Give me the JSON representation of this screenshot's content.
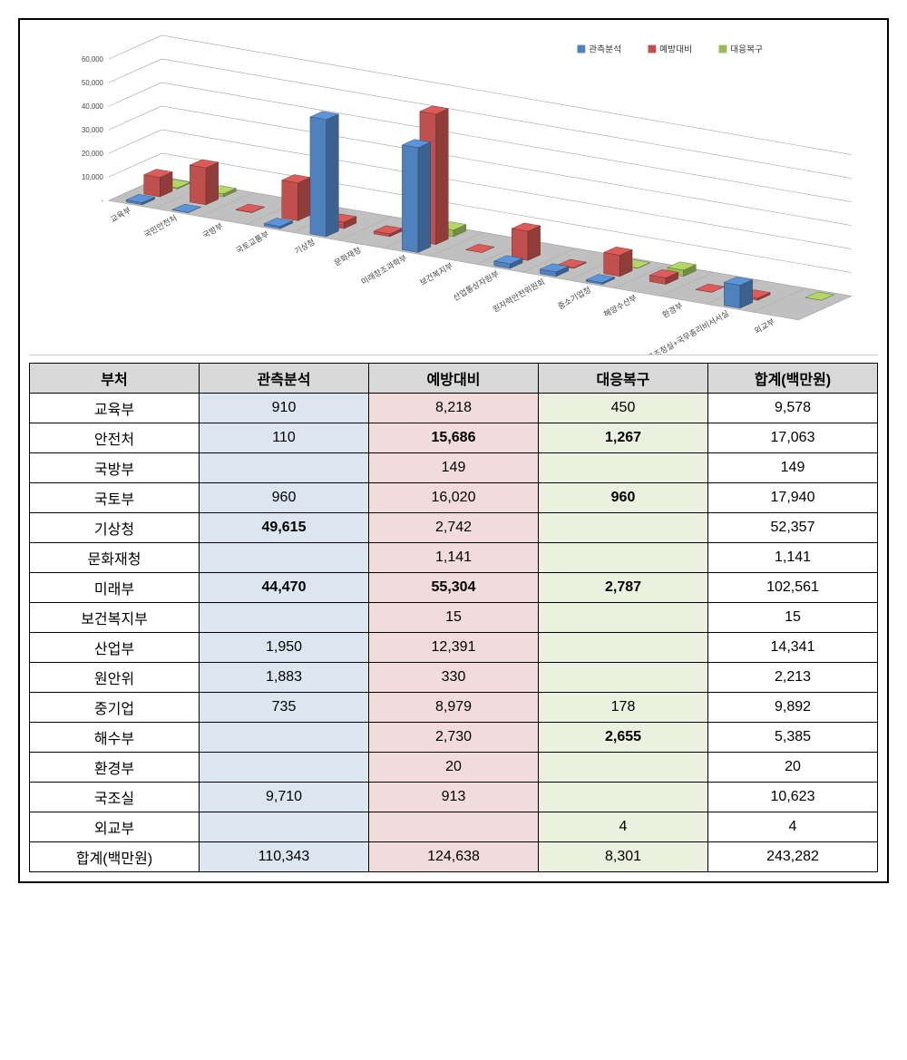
{
  "legend": [
    {
      "label": "관측분석",
      "color": "#4f81bd"
    },
    {
      "label": "예방대비",
      "color": "#c0504d"
    },
    {
      "label": "대응복구",
      "color": "#9bbb59"
    }
  ],
  "chart": {
    "type": "bar3d",
    "y_ticks": [
      0,
      10000,
      20000,
      30000,
      40000,
      50000,
      60000
    ],
    "y_tick_labels": [
      "-",
      "10,000",
      "20,000",
      "30,000",
      "40,000",
      "50,000",
      "60,000"
    ],
    "y_max": 60000,
    "floor_color": "#c0c0c0",
    "grid_color": "#a0a0a0",
    "axis_font_size": 8,
    "label_font_size": 9,
    "categories": [
      "교육부",
      "국민안전처",
      "국방부",
      "국토교통부",
      "기상청",
      "문화재청",
      "미래창조과학부",
      "보건복지부",
      "산업통상자원부",
      "원자력안전위원회",
      "중소기업청",
      "해양수산부",
      "환경부",
      "국무조정실+국무총리비서서실",
      "외교부"
    ],
    "series": [
      {
        "name": "관측분석",
        "color": "#4f81bd",
        "values": [
          910,
          110,
          0,
          960,
          49615,
          0,
          44470,
          0,
          1950,
          1883,
          735,
          0,
          0,
          9710,
          0
        ]
      },
      {
        "name": "예방대비",
        "color": "#c0504d",
        "values": [
          8218,
          15686,
          149,
          16020,
          2742,
          1141,
          55304,
          15,
          12391,
          330,
          8979,
          2730,
          20,
          913,
          0
        ]
      },
      {
        "name": "대응복구",
        "color": "#9bbb59",
        "values": [
          450,
          1267,
          0,
          960,
          0,
          0,
          2787,
          0,
          0,
          0,
          178,
          2655,
          0,
          0,
          4
        ]
      }
    ]
  },
  "table": {
    "columns": [
      "부처",
      "관측분석",
      "예방대비",
      "대응복구",
      "합계(백만원)"
    ],
    "column_class": [
      "col-plain",
      "col-blue",
      "col-pink",
      "col-green",
      "col-plain"
    ],
    "rows": [
      {
        "cells": [
          "교육부",
          "910",
          "8,218",
          "450",
          "9,578"
        ],
        "bold": [
          false,
          false,
          false,
          false,
          false
        ]
      },
      {
        "cells": [
          "안전처",
          "110",
          "15,686",
          "1,267",
          "17,063"
        ],
        "bold": [
          false,
          false,
          true,
          true,
          false
        ]
      },
      {
        "cells": [
          "국방부",
          "",
          "149",
          "",
          "149"
        ],
        "bold": [
          false,
          false,
          false,
          false,
          false
        ]
      },
      {
        "cells": [
          "국토부",
          "960",
          "16,020",
          "960",
          "17,940"
        ],
        "bold": [
          false,
          false,
          false,
          true,
          false
        ]
      },
      {
        "cells": [
          "기상청",
          "49,615",
          "2,742",
          "",
          "52,357"
        ],
        "bold": [
          false,
          true,
          false,
          false,
          false
        ]
      },
      {
        "cells": [
          "문화재청",
          "",
          "1,141",
          "",
          "1,141"
        ],
        "bold": [
          false,
          false,
          false,
          false,
          false
        ]
      },
      {
        "cells": [
          "미래부",
          "44,470",
          "55,304",
          "2,787",
          "102,561"
        ],
        "bold": [
          false,
          true,
          true,
          true,
          false
        ]
      },
      {
        "cells": [
          "보건복지부",
          "",
          "15",
          "",
          "15"
        ],
        "bold": [
          false,
          false,
          false,
          false,
          false
        ]
      },
      {
        "cells": [
          "산업부",
          "1,950",
          "12,391",
          "",
          "14,341"
        ],
        "bold": [
          false,
          false,
          false,
          false,
          false
        ]
      },
      {
        "cells": [
          "원안위",
          "1,883",
          "330",
          "",
          "2,213"
        ],
        "bold": [
          false,
          false,
          false,
          false,
          false
        ]
      },
      {
        "cells": [
          "중기업",
          "735",
          "8,979",
          "178",
          "9,892"
        ],
        "bold": [
          false,
          false,
          false,
          false,
          false
        ]
      },
      {
        "cells": [
          "해수부",
          "",
          "2,730",
          "2,655",
          "5,385"
        ],
        "bold": [
          false,
          false,
          false,
          true,
          false
        ]
      },
      {
        "cells": [
          "환경부",
          "",
          "20",
          "",
          "20"
        ],
        "bold": [
          false,
          false,
          false,
          false,
          false
        ]
      },
      {
        "cells": [
          "국조실",
          "9,710",
          "913",
          "",
          "10,623"
        ],
        "bold": [
          false,
          false,
          false,
          false,
          false
        ]
      },
      {
        "cells": [
          "외교부",
          "",
          "",
          "4",
          "4"
        ],
        "bold": [
          false,
          false,
          false,
          false,
          false
        ]
      },
      {
        "cells": [
          "합계(백만원)",
          "110,343",
          "124,638",
          "8,301",
          "243,282"
        ],
        "bold": [
          false,
          false,
          false,
          false,
          false
        ]
      }
    ]
  }
}
